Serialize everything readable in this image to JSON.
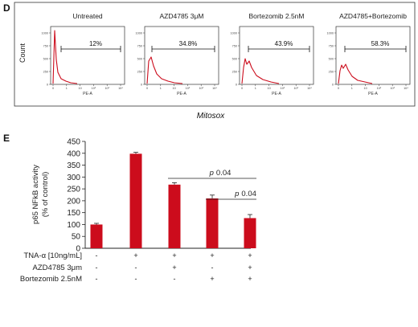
{
  "panel_d": {
    "letter": "D",
    "ylabel": "Count",
    "footer_label": "Mitosox",
    "histograms": [
      {
        "title": "Untreated",
        "gate_label": "12%"
      },
      {
        "title": "AZD4785 3μM",
        "gate_label": "34.8%"
      },
      {
        "title": "Bortezomib 2.5nM",
        "gate_label": "43.9%"
      },
      {
        "title": "AZD4785+Bortezomib",
        "gate_label": "58.3%"
      }
    ],
    "hist_xlabel": "PE-A",
    "hist_y_ticks": [
      "0",
      "250",
      "500",
      "750",
      "1000"
    ],
    "hist_x_ticks": [
      "0",
      "1",
      "10",
      "10²",
      "10³",
      "10⁴"
    ]
  },
  "panel_e": {
    "letter": "E",
    "ylabel_line1": "p65 NFkB activity",
    "ylabel_line2": "(% of control)",
    "pvalue_prefix": "p",
    "pvalue_text": "0.04",
    "treatments": [
      {
        "label": "TNA-α [10ng/mL]",
        "marks": [
          "-",
          "+",
          "+",
          "+",
          "+"
        ]
      },
      {
        "label": "AZD4785 3μm",
        "marks": [
          "-",
          "-",
          "+",
          "-",
          "+"
        ]
      },
      {
        "label": "Bortezomib 2.5nM",
        "marks": [
          "-",
          "-",
          "-",
          "+",
          "+"
        ]
      }
    ]
  },
  "chart_data": [
    {
      "type": "bar",
      "ylabel": "p65 NFkB activity (% of control)",
      "ylim": [
        0,
        450
      ],
      "y_ticks": [
        0,
        50,
        100,
        150,
        200,
        250,
        300,
        350,
        400,
        450
      ],
      "categories": [
        "1",
        "2",
        "3",
        "4",
        "5"
      ],
      "values": [
        100,
        398,
        268,
        210,
        127
      ],
      "errors": [
        5,
        6,
        8,
        14,
        15
      ],
      "bar_color": "#cc0c1c",
      "annotations": [
        {
          "from": 3,
          "to": 5,
          "text": "p 0.04"
        },
        {
          "from": 4,
          "to": 5,
          "text": "p 0.04"
        }
      ]
    }
  ]
}
